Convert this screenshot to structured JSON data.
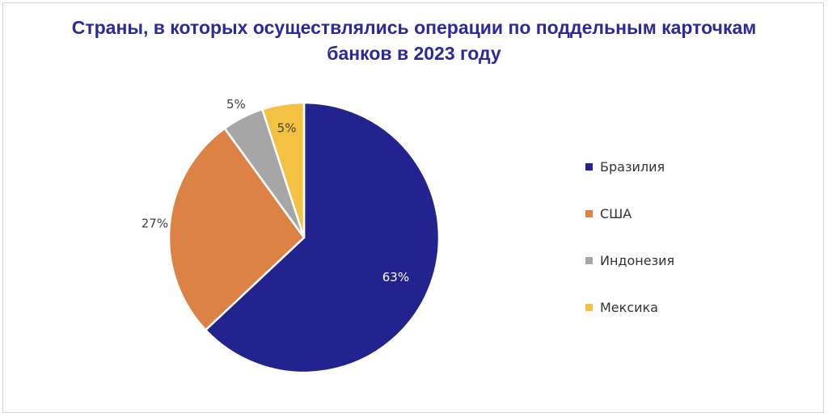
{
  "chart_data": {
    "type": "pie",
    "title_lines": [
      "Страны, в которых осуществлялись операции по поддельным карточкам",
      "банков в 2023 году"
    ],
    "slices": [
      {
        "label": "Бразилия",
        "value": 63,
        "value_label": "63%",
        "color": "#23238f"
      },
      {
        "label": "США",
        "value": 27,
        "value_label": "27%",
        "color": "#dc8245"
      },
      {
        "label": "Индонезия",
        "value": 5,
        "value_label": "5%",
        "color": "#a6a6a6"
      },
      {
        "label": "Мексика",
        "value": 5,
        "value_label": "5%",
        "color": "#f4c242"
      }
    ],
    "legend_position": "right",
    "start_angle_deg": 0,
    "direction": "clockwise"
  }
}
